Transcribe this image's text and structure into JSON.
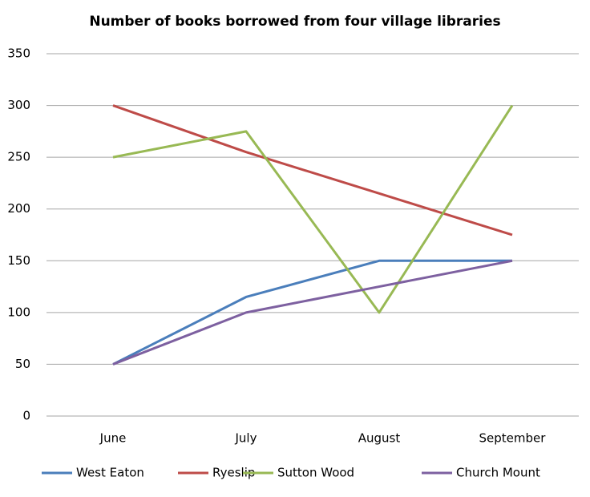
{
  "chart_data": {
    "type": "line",
    "title": "Number of books borrowed from four village libraries",
    "categories": [
      "June",
      "July",
      "August",
      "September"
    ],
    "series": [
      {
        "name": "West Eaton",
        "color": "#4a7ebb",
        "values": [
          50,
          115,
          150,
          150
        ]
      },
      {
        "name": "Ryeslip",
        "color": "#be4b48",
        "values": [
          300,
          255,
          215,
          175
        ]
      },
      {
        "name": "Sutton Wood",
        "color": "#98b954",
        "values": [
          250,
          275,
          100,
          300
        ]
      },
      {
        "name": "Church Mount",
        "color": "#7d60a0",
        "values": [
          50,
          100,
          125,
          150
        ]
      }
    ],
    "ylim": [
      0,
      350
    ],
    "yticks": [
      0,
      50,
      100,
      150,
      200,
      250,
      300,
      350
    ],
    "grid": true,
    "legend": "bottom"
  }
}
